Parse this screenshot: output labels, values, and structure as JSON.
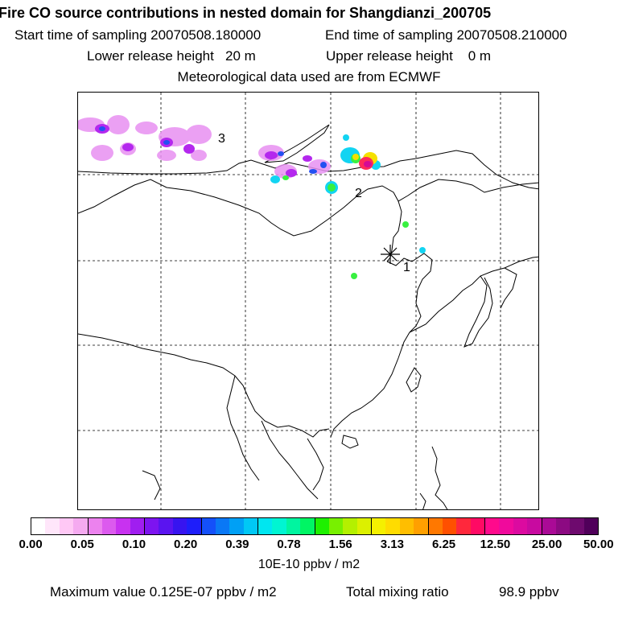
{
  "header": {
    "title": "Fire CO source contributions in nested domain for Shangdianzi_200705",
    "start_label": "Start time of sampling 20070508.180000",
    "end_label": "End time of sampling 20070508.210000",
    "lower_label": "Lower release height   20 m",
    "upper_label": "Upper release height    0 m",
    "met_label": "Meteorological data used are from ECMWF"
  },
  "map": {
    "labels": [
      {
        "id": "1",
        "text": "1"
      },
      {
        "id": "2",
        "text": "2"
      },
      {
        "id": "3",
        "text": "3"
      }
    ],
    "station_marker": "asterisk-icon"
  },
  "colorbar": {
    "colors": [
      "#ffffff",
      "#ffe6fa",
      "#ffc8f5",
      "#f5aaf0",
      "#ec82ee",
      "#dc5aee",
      "#c832f0",
      "#a01ef0",
      "#7d14f0",
      "#5a14f0",
      "#3714f0",
      "#1e1efa",
      "#1450fa",
      "#0a78f5",
      "#00a0f5",
      "#00c8f5",
      "#00e6f0",
      "#00f5d2",
      "#00f5a0",
      "#00f564",
      "#1ef000",
      "#78f000",
      "#b4f000",
      "#dcf000",
      "#f5f000",
      "#ffdc00",
      "#ffbe00",
      "#ffa000",
      "#ff7800",
      "#ff5000",
      "#ff283c",
      "#ff0a64",
      "#ff0a8c",
      "#f00a9c",
      "#dc0aa0",
      "#c80aa0",
      "#aa0a96",
      "#8c0a82",
      "#6e0a6e",
      "#50005a"
    ],
    "tick_labels": [
      "0.00",
      "0.05",
      "0.10",
      "0.20",
      "0.39",
      "0.78",
      "1.56",
      "3.13",
      "6.25",
      "12.50",
      "25.00",
      "50.00"
    ]
  },
  "units": "10E-10 ppbv / m2",
  "footer": {
    "max_label": "Maximum value  0.125E-07 ppbv / m2",
    "total_label": "Total mixing ratio",
    "total_value": "98.9 ppbv"
  }
}
